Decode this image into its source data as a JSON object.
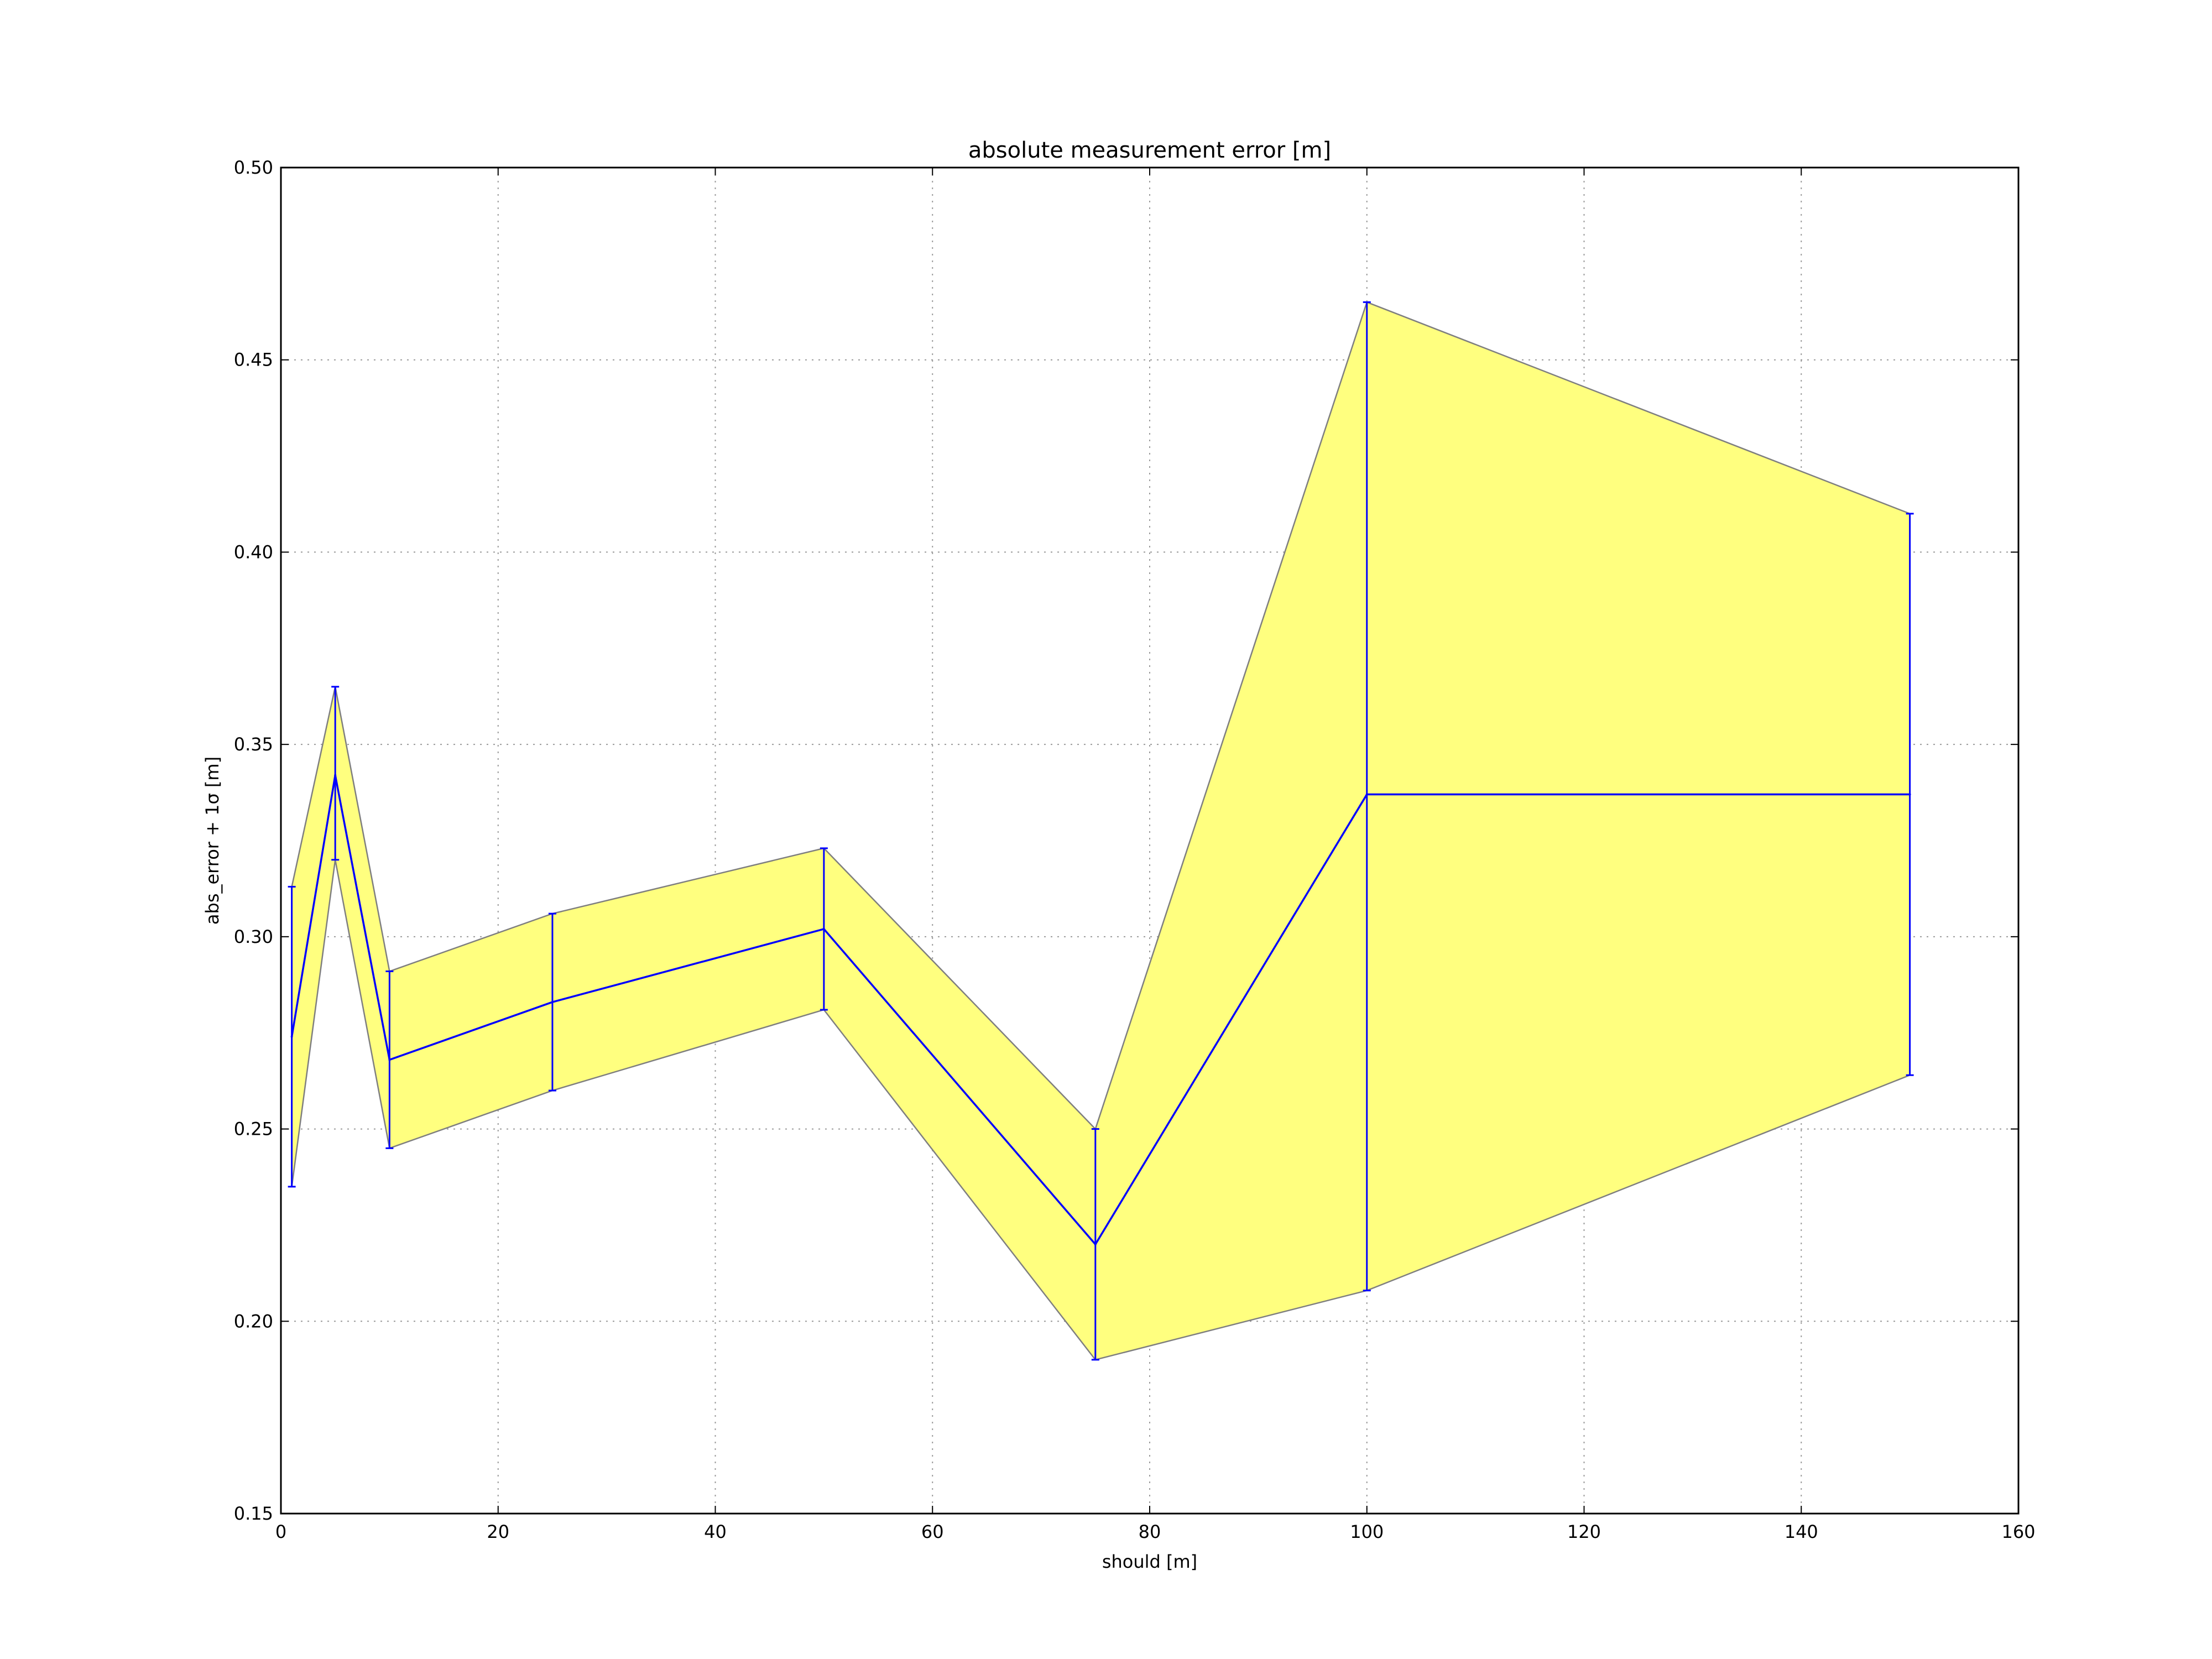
{
  "chart_data": {
    "type": "line",
    "title": "absolute measurement error [m]",
    "xlabel": "should [m]",
    "ylabel": "abs_error + 1σ [m]",
    "xlim": [
      0,
      160
    ],
    "ylim": [
      0.15,
      0.5
    ],
    "xticks": [
      "0",
      "20",
      "40",
      "60",
      "80",
      "100",
      "120",
      "140",
      "160"
    ],
    "yticks": [
      "0.15",
      "0.20",
      "0.25",
      "0.30",
      "0.35",
      "0.40",
      "0.45",
      "0.50"
    ],
    "grid": true,
    "series": [
      {
        "x": [
          1,
          5,
          10,
          25,
          50,
          75,
          100,
          150
        ],
        "y": [
          0.274,
          0.342,
          0.268,
          0.283,
          0.302,
          0.22,
          0.337,
          0.337
        ],
        "yerr_low": [
          0.235,
          0.32,
          0.245,
          0.26,
          0.281,
          0.19,
          0.208,
          0.264
        ],
        "yerr_high": [
          0.313,
          0.365,
          0.291,
          0.306,
          0.323,
          0.25,
          0.465,
          0.41
        ]
      }
    ],
    "colors": {
      "line": "#0000ff",
      "band_fill": "#ffff7f",
      "band_edge": "#7f7f7f",
      "grid": "#9a9a9a",
      "axes": "#000000"
    }
  }
}
